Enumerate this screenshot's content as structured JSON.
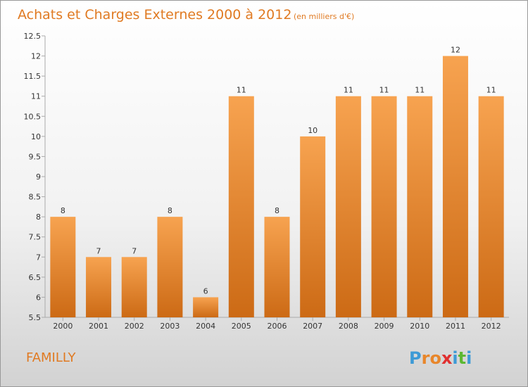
{
  "chart_data": {
    "type": "bar",
    "title": "Achats et Charges Externes 2000 à 2012",
    "subtitle": "(en milliers d'€)",
    "categories": [
      "2000",
      "2001",
      "2002",
      "2003",
      "2004",
      "2005",
      "2006",
      "2007",
      "2008",
      "2009",
      "2010",
      "2011",
      "2012"
    ],
    "values": [
      8,
      7,
      7,
      8,
      6,
      11,
      8,
      10,
      11,
      11,
      11,
      12,
      11
    ],
    "data_labels": [
      "8",
      "7",
      "7",
      "8",
      "6",
      "11",
      "8",
      "10",
      "11",
      "11",
      "11",
      "12",
      "11"
    ],
    "ylim": [
      5.5,
      12.5
    ],
    "yticks": [
      5.5,
      6,
      6.5,
      7,
      7.5,
      8,
      8.5,
      9,
      9.5,
      10,
      10.5,
      11,
      11.5,
      12,
      12.5
    ],
    "ytick_labels": [
      "5.5",
      "6",
      "6.5",
      "7",
      "7.5",
      "8",
      "8.5",
      "9",
      "9.5",
      "10",
      "10.5",
      "11",
      "11.5",
      "12",
      "12.5"
    ],
    "grid": false,
    "legend": "none",
    "bar_color_top": "#f7a350",
    "bar_color_bottom": "#cc6a15"
  },
  "commune_name": "FAMILLY",
  "logo": {
    "letters": [
      "P",
      "r",
      "o",
      "x",
      "i",
      "t",
      "i"
    ],
    "colors": [
      "#3d9ad6",
      "#e8862a",
      "#e8862a",
      "#e03030",
      "#3d9ad6",
      "#5cb833",
      "#3d9ad6"
    ]
  },
  "colors": {
    "accent": "#e07a22"
  }
}
